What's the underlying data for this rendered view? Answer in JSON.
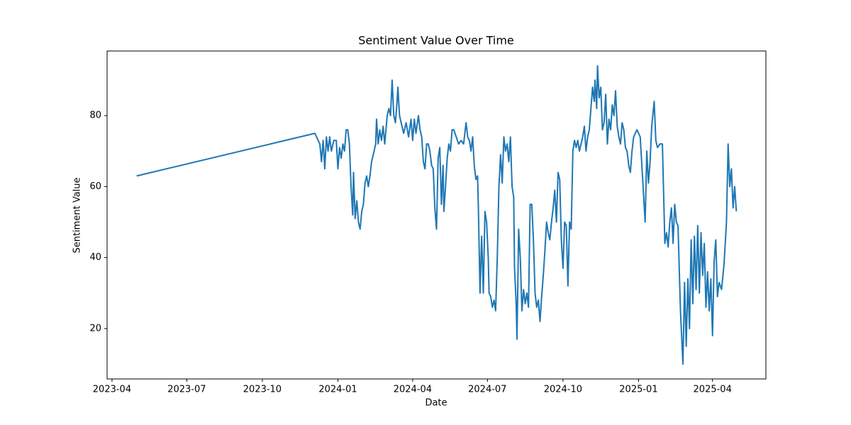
{
  "chart_data": {
    "type": "line",
    "title": "Sentiment Value Over Time",
    "xlabel": "Date",
    "ylabel": "Sentiment Value",
    "color": "#1f77b4",
    "x": [
      "2023-05-01",
      "2023-12-04",
      "2023-12-10",
      "2023-12-12",
      "2023-12-14",
      "2023-12-16",
      "2023-12-18",
      "2023-12-20",
      "2023-12-22",
      "2023-12-24",
      "2023-12-27",
      "2023-12-30",
      "2024-01-01",
      "2024-01-03",
      "2024-01-05",
      "2024-01-07",
      "2024-01-09",
      "2024-01-11",
      "2024-01-13",
      "2024-01-15",
      "2024-01-17",
      "2024-01-19",
      "2024-01-20",
      "2024-01-22",
      "2024-01-24",
      "2024-01-26",
      "2024-01-28",
      "2024-01-30",
      "2024-02-01",
      "2024-02-03",
      "2024-02-05",
      "2024-02-07",
      "2024-02-09",
      "2024-02-11",
      "2024-02-14",
      "2024-02-16",
      "2024-02-17",
      "2024-02-19",
      "2024-02-21",
      "2024-02-23",
      "2024-02-25",
      "2024-02-27",
      "2024-03-01",
      "2024-03-03",
      "2024-03-05",
      "2024-03-07",
      "2024-03-09",
      "2024-03-11",
      "2024-03-13",
      "2024-03-14",
      "2024-03-16",
      "2024-03-18",
      "2024-03-21",
      "2024-03-24",
      "2024-03-27",
      "2024-03-30",
      "2024-04-01",
      "2024-04-03",
      "2024-04-05",
      "2024-04-08",
      "2024-04-10",
      "2024-04-12",
      "2024-04-14",
      "2024-04-16",
      "2024-04-18",
      "2024-04-20",
      "2024-04-22",
      "2024-04-24",
      "2024-04-26",
      "2024-04-28",
      "2024-04-30",
      "2024-05-02",
      "2024-05-04",
      "2024-05-06",
      "2024-05-08",
      "2024-05-09",
      "2024-05-11",
      "2024-05-13",
      "2024-05-15",
      "2024-05-17",
      "2024-05-19",
      "2024-05-21",
      "2024-05-24",
      "2024-05-27",
      "2024-05-30",
      "2024-06-02",
      "2024-06-05",
      "2024-06-07",
      "2024-06-09",
      "2024-06-11",
      "2024-06-13",
      "2024-06-15",
      "2024-06-17",
      "2024-06-19",
      "2024-06-20",
      "2024-06-22",
      "2024-06-24",
      "2024-06-26",
      "2024-06-28",
      "2024-06-30",
      "2024-07-02",
      "2024-07-03",
      "2024-07-05",
      "2024-07-07",
      "2024-07-09",
      "2024-07-11",
      "2024-07-13",
      "2024-07-15",
      "2024-07-17",
      "2024-07-19",
      "2024-07-21",
      "2024-07-23",
      "2024-07-25",
      "2024-07-27",
      "2024-07-29",
      "2024-07-31",
      "2024-08-02",
      "2024-08-03",
      "2024-08-05",
      "2024-08-06",
      "2024-08-08",
      "2024-08-10",
      "2024-08-12",
      "2024-08-14",
      "2024-08-16",
      "2024-08-18",
      "2024-08-20",
      "2024-08-22",
      "2024-08-24",
      "2024-08-26",
      "2024-08-28",
      "2024-08-30",
      "2024-09-01",
      "2024-09-03",
      "2024-09-05",
      "2024-09-07",
      "2024-09-09",
      "2024-09-11",
      "2024-09-13",
      "2024-09-15",
      "2024-09-17",
      "2024-09-19",
      "2024-09-21",
      "2024-09-23",
      "2024-09-25",
      "2024-09-27",
      "2024-09-29",
      "2024-10-01",
      "2024-10-03",
      "2024-10-05",
      "2024-10-07",
      "2024-10-09",
      "2024-10-11",
      "2024-10-13",
      "2024-10-15",
      "2024-10-17",
      "2024-10-19",
      "2024-10-21",
      "2024-10-23",
      "2024-10-25",
      "2024-10-27",
      "2024-10-29",
      "2024-10-31",
      "2024-11-02",
      "2024-11-04",
      "2024-11-06",
      "2024-11-08",
      "2024-11-09",
      "2024-11-11",
      "2024-11-12",
      "2024-11-14",
      "2024-11-16",
      "2024-11-18",
      "2024-11-20",
      "2024-11-22",
      "2024-11-24",
      "2024-11-26",
      "2024-11-28",
      "2024-11-30",
      "2024-12-02",
      "2024-12-04",
      "2024-12-06",
      "2024-12-08",
      "2024-12-10",
      "2024-12-12",
      "2024-12-14",
      "2024-12-16",
      "2024-12-18",
      "2024-12-20",
      "2024-12-22",
      "2024-12-24",
      "2024-12-26",
      "2024-12-30",
      "2025-01-03",
      "2025-01-09",
      "2025-01-11",
      "2025-01-13",
      "2025-01-15",
      "2025-01-17",
      "2025-01-20",
      "2025-01-22",
      "2025-01-24",
      "2025-01-27",
      "2025-01-30",
      "2025-02-02",
      "2025-02-04",
      "2025-02-06",
      "2025-02-08",
      "2025-02-10",
      "2025-02-12",
      "2025-02-14",
      "2025-02-16",
      "2025-02-18",
      "2025-02-21",
      "2025-02-24",
      "2025-02-26",
      "2025-02-28",
      "2025-03-02",
      "2025-03-04",
      "2025-03-06",
      "2025-03-08",
      "2025-03-10",
      "2025-03-12",
      "2025-03-14",
      "2025-03-16",
      "2025-03-18",
      "2025-03-20",
      "2025-03-22",
      "2025-03-24",
      "2025-03-26",
      "2025-03-28",
      "2025-03-30",
      "2025-04-01",
      "2025-04-03",
      "2025-04-05",
      "2025-04-07",
      "2025-04-09",
      "2025-04-12",
      "2025-04-15",
      "2025-04-18",
      "2025-04-20",
      "2025-04-22",
      "2025-04-24",
      "2025-04-26",
      "2025-04-28",
      "2025-04-30"
    ],
    "values": [
      63,
      75,
      72,
      67,
      73,
      65,
      74,
      70,
      74,
      70,
      73,
      73,
      65,
      71,
      68,
      72,
      70,
      76,
      76,
      72,
      60,
      52,
      64,
      51,
      56,
      50,
      48,
      53,
      55,
      61,
      63,
      60,
      63,
      67,
      70,
      72,
      79,
      72,
      76,
      73,
      77,
      72,
      80,
      82,
      80,
      90,
      80,
      78,
      84,
      88,
      80,
      78,
      75,
      78,
      74,
      79,
      73,
      79,
      75,
      80,
      76,
      74,
      67,
      65,
      72,
      72,
      70,
      66,
      65,
      54,
      48,
      68,
      71,
      55,
      66,
      53,
      60,
      68,
      72,
      70,
      76,
      76,
      74,
      72,
      73,
      72,
      78,
      74,
      73,
      70,
      74,
      66,
      62,
      63,
      54,
      30,
      46,
      30,
      53,
      50,
      40,
      30,
      29,
      26,
      28,
      25,
      40,
      60,
      69,
      61,
      74,
      70,
      72,
      67,
      74,
      60,
      57,
      37,
      27,
      17,
      48,
      40,
      25,
      31,
      27,
      30,
      26,
      55,
      55,
      45,
      30,
      26,
      28,
      22,
      29,
      35,
      42,
      50,
      47,
      45,
      50,
      54,
      59,
      50,
      64,
      62,
      45,
      37,
      50,
      49,
      32,
      50,
      48,
      70,
      73,
      71,
      73,
      70,
      72,
      74,
      77,
      70,
      74,
      76,
      82,
      88,
      84,
      90,
      82,
      94,
      85,
      88,
      76,
      78,
      86,
      72,
      79,
      76,
      83,
      80,
      87,
      77,
      74,
      72,
      78,
      76,
      71,
      70,
      66,
      64,
      70,
      74,
      76,
      74,
      50,
      70,
      61,
      67,
      77,
      84,
      73,
      71,
      72,
      72,
      44,
      47,
      43,
      50,
      54,
      44,
      55,
      50,
      49,
      25,
      10,
      33,
      15,
      34,
      20,
      45,
      27,
      46,
      31,
      49,
      30,
      47,
      35,
      44,
      26,
      36,
      25,
      34,
      18,
      39,
      45,
      29,
      33,
      31,
      38,
      50,
      72,
      60,
      65,
      54,
      60,
      53
    ],
    "xlim": [
      "2023-03-26",
      "2025-06-05"
    ],
    "xticks": [
      {
        "value": "2023-04-01",
        "label": "2023-04"
      },
      {
        "value": "2023-07-01",
        "label": "2023-07"
      },
      {
        "value": "2023-10-01",
        "label": "2023-10"
      },
      {
        "value": "2024-01-01",
        "label": "2024-01"
      },
      {
        "value": "2024-04-01",
        "label": "2024-04"
      },
      {
        "value": "2024-07-01",
        "label": "2024-07"
      },
      {
        "value": "2024-10-01",
        "label": "2024-10"
      },
      {
        "value": "2025-01-01",
        "label": "2025-01"
      },
      {
        "value": "2025-04-01",
        "label": "2025-04"
      }
    ],
    "ylim": [
      5.8,
      98.2
    ],
    "yticks": [
      20,
      40,
      60,
      80
    ]
  }
}
